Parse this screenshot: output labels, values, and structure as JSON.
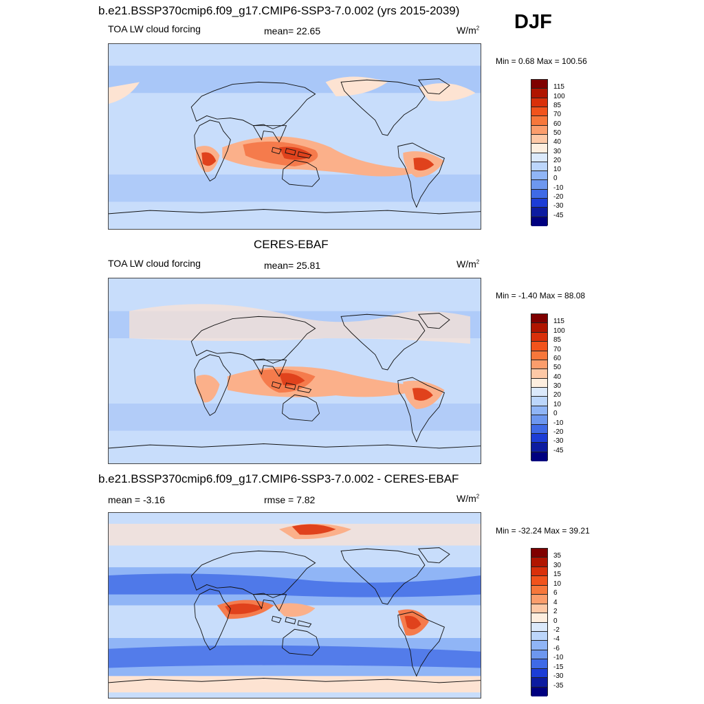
{
  "season": "DJF",
  "panels": [
    {
      "title": "b.e21.BSSP370cmip6.f09_g17.CMIP6-SSP3-7.0.002 (yrs 2015-2039)",
      "left_label": "TOA LW cloud forcing",
      "center_label": "mean=  22.65",
      "units": "W/m",
      "units_sup": "2",
      "minmax": "Min =   0.68 Max = 100.56",
      "levels": [
        "115",
        "100",
        "85",
        "70",
        "60",
        "50",
        "40",
        "30",
        "20",
        "10",
        "0",
        "-10",
        "-20",
        "-30",
        "-45"
      ]
    },
    {
      "title": "CERES-EBAF",
      "left_label": "TOA LW cloud forcing",
      "center_label": "mean=  25.81",
      "units": "W/m",
      "units_sup": "2",
      "minmax": "Min =  -1.40 Max =  88.08",
      "levels": [
        "115",
        "100",
        "85",
        "70",
        "60",
        "50",
        "40",
        "30",
        "20",
        "10",
        "0",
        "-10",
        "-20",
        "-30",
        "-45"
      ]
    },
    {
      "title": "b.e21.BSSP370cmip6.f09_g17.CMIP6-SSP3-7.0.002 - CERES-EBAF",
      "left_label": "mean =  -3.16",
      "center_label": "rmse =   7.82",
      "units": "W/m",
      "units_sup": "2",
      "minmax": "Min = -32.24 Max =  39.21",
      "levels": [
        "35",
        "30",
        "15",
        "10",
        "6",
        "4",
        "2",
        "0",
        "-2",
        "-4",
        "-6",
        "-10",
        "-15",
        "-30",
        "-35"
      ]
    }
  ],
  "colorbar_colors": [
    "#7f0000",
    "#b01500",
    "#d9300a",
    "#f1531c",
    "#f7773b",
    "#fb9d6c",
    "#fdc8a6",
    "#fdeedf",
    "#dbe9fb",
    "#bcd6fb",
    "#90b5f6",
    "#6d97ef",
    "#3f6ae6",
    "#1c3dd6",
    "#0d1ca0",
    "#00007f"
  ],
  "map_palette": {
    "ocean_base": "#c8ddfb",
    "mid_blue": "#90b5f6",
    "deep_blue": "#3f6ae6",
    "peach": "#fde3d2",
    "light_orange": "#fbb08a",
    "orange": "#f57b4c",
    "red": "#e0421c",
    "land_outline": "#111111"
  }
}
